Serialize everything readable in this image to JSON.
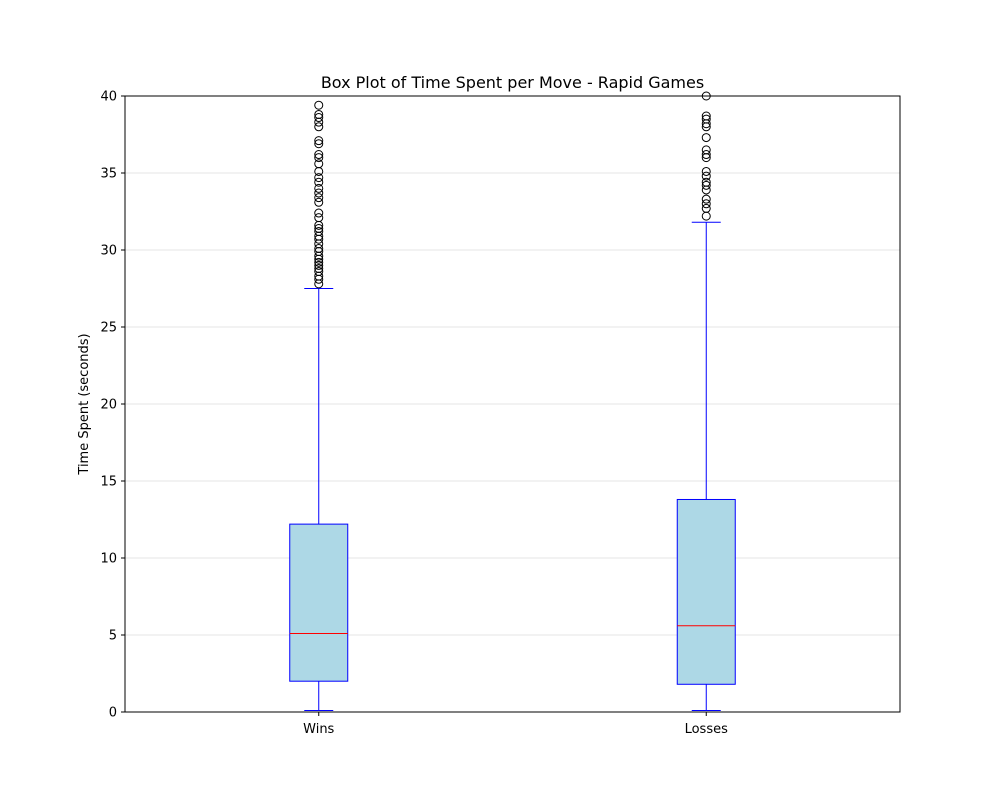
{
  "chart_data": {
    "type": "box",
    "title": "Box Plot of Time Spent per Move - Rapid Games",
    "xlabel": "",
    "ylabel": "Time Spent (seconds)",
    "ylim": [
      0,
      40
    ],
    "yticks": [
      0,
      5,
      10,
      15,
      20,
      25,
      30,
      35,
      40
    ],
    "grid": {
      "y": true,
      "x": false
    },
    "categories": [
      "Wins",
      "Losses"
    ],
    "boxes": [
      {
        "category": "Wins",
        "whisker_low": 0.1,
        "q1": 2.0,
        "median": 5.1,
        "q3": 12.2,
        "whisker_high": 27.5,
        "outliers": [
          27.8,
          28.1,
          28.3,
          28.6,
          28.8,
          29.0,
          29.2,
          29.4,
          29.6,
          29.9,
          30.1,
          30.4,
          30.7,
          30.9,
          31.2,
          31.4,
          31.6,
          32.1,
          32.4,
          33.1,
          33.4,
          33.7,
          34.0,
          34.4,
          34.7,
          35.1,
          35.6,
          36.0,
          36.2,
          36.9,
          37.1,
          38.0,
          38.3,
          38.6,
          38.8,
          39.4
        ]
      },
      {
        "category": "Losses",
        "whisker_low": 0.1,
        "q1": 1.8,
        "median": 5.6,
        "q3": 13.8,
        "whisker_high": 31.8,
        "outliers": [
          32.2,
          32.7,
          33.0,
          33.3,
          33.9,
          34.2,
          34.4,
          34.8,
          35.1,
          36.0,
          36.2,
          36.5,
          37.3,
          38.0,
          38.2,
          38.5,
          38.7,
          40.0
        ]
      }
    ],
    "colors": {
      "box_fill": "#add8e6",
      "box_edge": "#0000ff",
      "median": "#ff0000",
      "grid": "#e6e6e6",
      "outlier_edge": "#000000"
    }
  }
}
